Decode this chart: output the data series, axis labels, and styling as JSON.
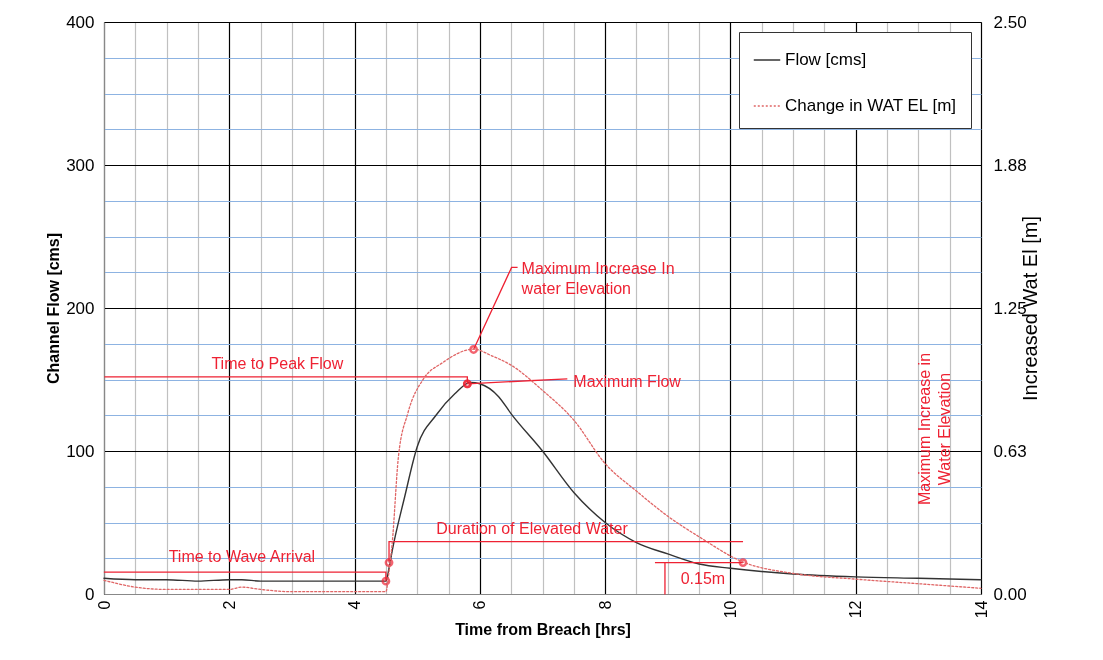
{
  "chart_data": {
    "type": "line",
    "xlabel": "Time from Breach [hrs]",
    "ylabel": "Channel Flow [cms]",
    "y2label": "Increased Wat El [m]",
    "xlim": [
      0,
      14
    ],
    "xticks": [
      0,
      {
        "value": 0.5,
        "label": null
      },
      {
        "value": 1,
        "label": null
      },
      {
        "value": 1.5,
        "label": null
      },
      2,
      {
        "value": 2.5,
        "label": null
      },
      {
        "value": 3,
        "label": null
      },
      {
        "value": 3.5,
        "label": null
      },
      4,
      {
        "value": 4.5,
        "label": null
      },
      {
        "value": 5,
        "label": null
      },
      {
        "value": 5.5,
        "label": null
      },
      6,
      {
        "value": 6.5,
        "label": null
      },
      {
        "value": 7,
        "label": null
      },
      {
        "value": 7.5,
        "label": null
      },
      8,
      {
        "value": 8.5,
        "label": null
      },
      {
        "value": 9,
        "label": null
      },
      {
        "value": 9.5,
        "label": null
      },
      10,
      {
        "value": 10.5,
        "label": null
      },
      {
        "value": 11,
        "label": null
      },
      {
        "value": 11.5,
        "label": null
      },
      12,
      {
        "value": 12.5,
        "label": null
      },
      {
        "value": 13,
        "label": null
      },
      {
        "value": 13.5,
        "label": null
      },
      14
    ],
    "ylim": [
      0,
      400
    ],
    "yticks": [
      0,
      {
        "value": 25,
        "label": null
      },
      {
        "value": 50,
        "label": null
      },
      {
        "value": 75,
        "label": null
      },
      100,
      {
        "value": 125,
        "label": null
      },
      {
        "value": 150,
        "label": null
      },
      {
        "value": 175,
        "label": null
      },
      200,
      {
        "value": 225,
        "label": null
      },
      {
        "value": 250,
        "label": null
      },
      {
        "value": 275,
        "label": null
      },
      300,
      {
        "value": 325,
        "label": null
      },
      {
        "value": 350,
        "label": null
      },
      {
        "value": 375,
        "label": null
      },
      400
    ],
    "y2lim": [
      0,
      2.5
    ],
    "y2ticks": [
      {
        "value": 0,
        "label": "0.00"
      },
      {
        "value": 0.625,
        "label": "0.63"
      },
      {
        "value": 1.25,
        "label": "1.25"
      },
      {
        "value": 1.875,
        "label": "1.88"
      },
      {
        "value": 2.5,
        "label": "2.50"
      }
    ],
    "grid": true,
    "legend": "top right",
    "series": [
      {
        "name": "Flow [cms]",
        "color": "#333333",
        "line_style": "solid",
        "x": [
          0,
          0.5,
          1,
          1.5,
          2,
          2.2,
          2.5,
          3,
          3.5,
          4,
          4.5,
          4.55,
          4.6,
          4.8,
          5,
          5.3,
          5.6,
          5.85,
          6,
          6.3,
          6.5,
          7,
          7.5,
          8,
          8.5,
          9,
          9.5,
          10,
          11,
          12,
          13,
          14
        ],
        "values": [
          11,
          10,
          10,
          9,
          10,
          10,
          9,
          9,
          9,
          9,
          9,
          18,
          30,
          68,
          103,
          125,
          140,
          148,
          147,
          138,
          126,
          100,
          71,
          50,
          36,
          28,
          21,
          18,
          14,
          12,
          11,
          10
        ]
      },
      {
        "name": "Change in WAT EL [m]",
        "color": "#e06666",
        "line_style": "dotted",
        "axis": "y2",
        "x": [
          0,
          0.5,
          1,
          1.5,
          2,
          2.2,
          2.5,
          3,
          3.5,
          4,
          4.5,
          4.55,
          4.6,
          4.7,
          4.85,
          5.1,
          5.4,
          5.9,
          6.2,
          6.5,
          7,
          7.5,
          8,
          8.5,
          9,
          9.5,
          10.2,
          11,
          12,
          13,
          14
        ],
        "values": [
          0.06,
          0.03,
          0.02,
          0.02,
          0.02,
          0.03,
          0.02,
          0.01,
          0.01,
          0.01,
          0.01,
          0.1,
          0.22,
          0.6,
          0.79,
          0.94,
          1.01,
          1.07,
          1.04,
          1.0,
          0.89,
          0.76,
          0.57,
          0.45,
          0.34,
          0.25,
          0.14,
          0.09,
          0.065,
          0.045,
          0.025
        ]
      }
    ],
    "annotations": [
      {
        "text": "Time to Wave Arrival",
        "x": 4.5,
        "y": 9
      },
      {
        "text": "Time to Peak Flow",
        "x": 5.8,
        "y": 147
      },
      {
        "text": "Maximum Flow",
        "x": 5.8,
        "y": 147
      },
      {
        "text": "Maximum Increase In\nwater Elevation",
        "x": 5.9,
        "y": 171
      },
      {
        "text": "Duration of Elevated Water",
        "x": 4.55,
        "y": 22
      },
      {
        "text": "0.15m",
        "x": 10.2,
        "y": 22
      },
      "Maximum Increase in\nWater Elevation"
    ]
  }
}
